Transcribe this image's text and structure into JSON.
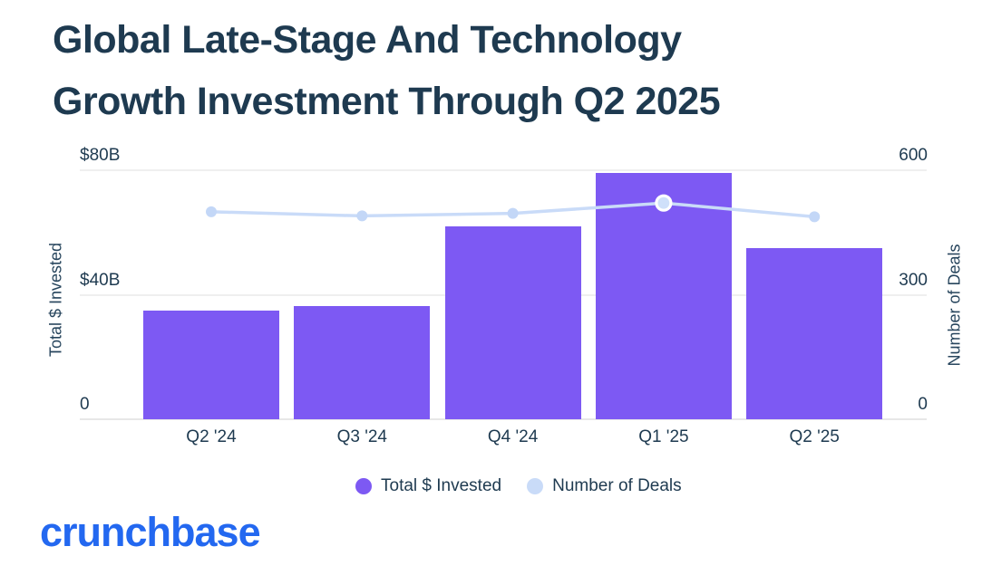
{
  "title": {
    "line1": "Global Late-Stage And Technology",
    "line2": "Growth Investment Through Q2 2025"
  },
  "chart_data": {
    "type": "combo-bar-line",
    "categories": [
      "Q2 '24",
      "Q3 '24",
      "Q4 '24",
      "Q1 '25",
      "Q2 '25"
    ],
    "series": [
      {
        "name": "Total $ Invested",
        "type": "bar",
        "axis": "left",
        "unit": "USD billions",
        "color": "#7D59F3",
        "values": [
          35,
          36.5,
          62,
          79,
          55
        ]
      },
      {
        "name": "Number of Deals",
        "type": "line",
        "axis": "right",
        "color": "#C9DBF8",
        "point_color": "#C3D7F7",
        "highlight_point_color": "#CFE0FA",
        "values": [
          500,
          490,
          496,
          521,
          488
        ],
        "highlight_index": 3
      }
    ],
    "left_axis": {
      "label": "Total $ Invested",
      "max": 80,
      "ticks": [
        {
          "value": 80,
          "label": "$80B"
        },
        {
          "value": 40,
          "label": "$40B"
        },
        {
          "value": 0,
          "label": "0"
        }
      ]
    },
    "right_axis": {
      "label": "Number of Deals",
      "max": 600,
      "ticks": [
        {
          "value": 600,
          "label": "600"
        },
        {
          "value": 300,
          "label": "300"
        },
        {
          "value": 0,
          "label": "0"
        }
      ]
    },
    "grid": true,
    "legend_position": "bottom"
  },
  "legend": {
    "items": [
      {
        "label": "Total $ Invested",
        "swatch_color": "#7D59F3"
      },
      {
        "label": "Number of Deals",
        "swatch_color": "#C9DBF8"
      }
    ]
  },
  "footer": {
    "logo_text": "crunchbase"
  },
  "colors": {
    "title_text": "#1E3A50",
    "bar_purple": "#7D59F3",
    "line_blue": "#C9DBF8",
    "logo_blue": "#2368F0",
    "gridline": "#EFEFEF"
  }
}
